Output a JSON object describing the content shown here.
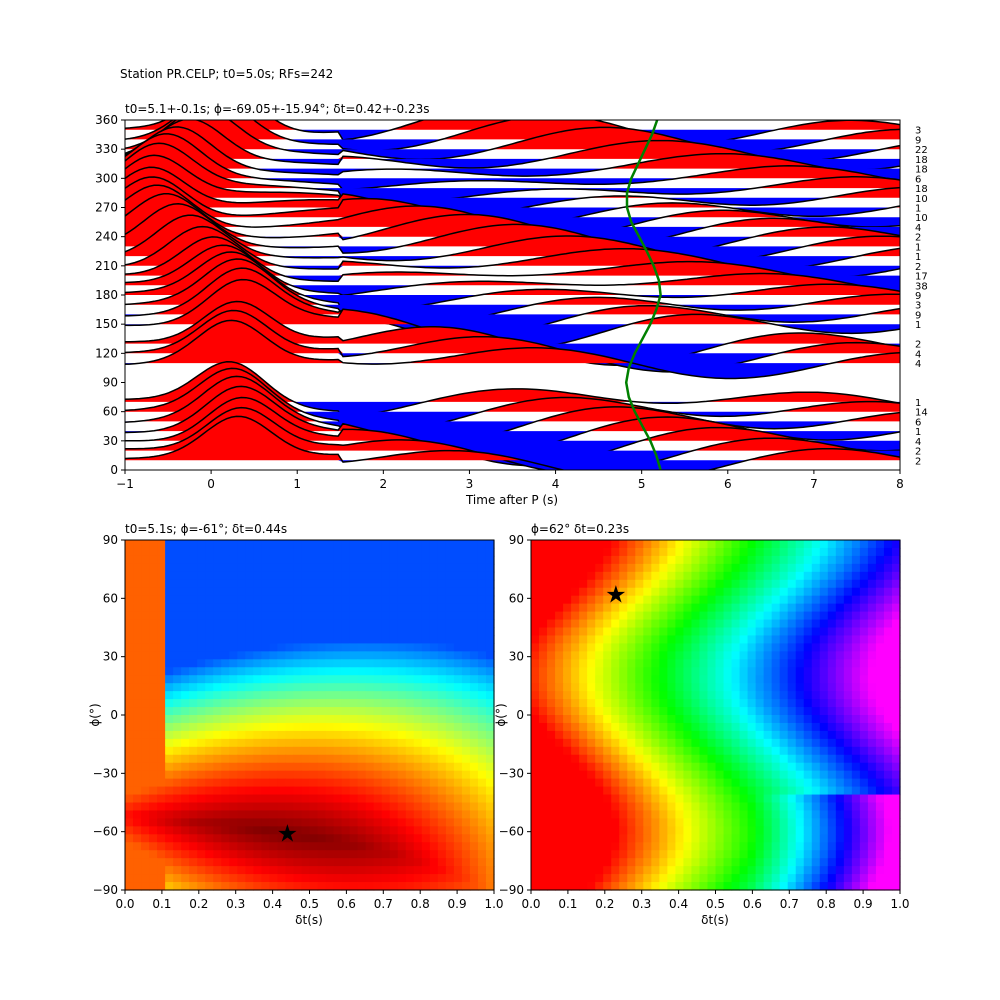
{
  "figure": {
    "suptitle": "Station PR.CELP; t0=5.0s; RFs=242"
  },
  "chart_data": [
    {
      "type": "line",
      "id": "rf-stack",
      "title": "t0=5.1+-0.1s; ϕ=-69.05+-15.94°; δt=0.42+-0.23s",
      "xlabel": "Time after P (s)",
      "ylabel": "",
      "xlim": [
        -1,
        8
      ],
      "ylim": [
        0,
        360
      ],
      "xticks": [
        -1,
        0,
        1,
        2,
        3,
        4,
        5,
        6,
        7,
        8
      ],
      "yticks": [
        0,
        30,
        60,
        90,
        120,
        150,
        180,
        210,
        240,
        270,
        300,
        330,
        360
      ],
      "fill_positive_color": "#ff0000",
      "fill_negative_color": "#0000ff",
      "trace_color": "#000000",
      "t0_curve_color": "#008000",
      "t0_curve": {
        "baz": [
          0,
          15,
          30,
          45,
          60,
          75,
          90,
          105,
          120,
          135,
          150,
          165,
          180,
          195,
          210,
          225,
          240,
          255,
          270,
          285,
          300,
          315,
          330,
          345,
          360
        ],
        "t": [
          5.22,
          5.17,
          5.1,
          5.01,
          4.92,
          4.85,
          4.82,
          4.85,
          4.92,
          5.01,
          5.1,
          5.17,
          5.22,
          5.2,
          5.14,
          5.06,
          4.97,
          4.88,
          4.83,
          4.83,
          4.88,
          4.96,
          5.04,
          5.12,
          5.18
        ]
      },
      "baz_bins": [
        {
          "baz": 10,
          "count": "2"
        },
        {
          "baz": 20,
          "count": "2"
        },
        {
          "baz": 30,
          "count": "4"
        },
        {
          "baz": 40,
          "count": "1"
        },
        {
          "baz": 50,
          "count": "6"
        },
        {
          "baz": 60,
          "count": "14"
        },
        {
          "baz": 70,
          "count": "1"
        },
        {
          "baz": 110,
          "count": "4"
        },
        {
          "baz": 120,
          "count": "4"
        },
        {
          "baz": 130,
          "count": "2"
        },
        {
          "baz": 150,
          "count": "1"
        },
        {
          "baz": 160,
          "count": "9"
        },
        {
          "baz": 170,
          "count": "3"
        },
        {
          "baz": 180,
          "count": "9"
        },
        {
          "baz": 190,
          "count": "38"
        },
        {
          "baz": 200,
          "count": "17"
        },
        {
          "baz": 210,
          "count": "2"
        },
        {
          "baz": 220,
          "count": "1"
        },
        {
          "baz": 230,
          "count": "1"
        },
        {
          "baz": 240,
          "count": "2"
        },
        {
          "baz": 250,
          "count": "4"
        },
        {
          "baz": 260,
          "count": "10"
        },
        {
          "baz": 270,
          "count": "1"
        },
        {
          "baz": 280,
          "count": "10"
        },
        {
          "baz": 290,
          "count": "18"
        },
        {
          "baz": 300,
          "count": "6"
        },
        {
          "baz": 310,
          "count": "18"
        },
        {
          "baz": 320,
          "count": "18"
        },
        {
          "baz": 330,
          "count": "22"
        },
        {
          "baz": 340,
          "count": "9"
        },
        {
          "baz": 350,
          "count": "3"
        }
      ]
    },
    {
      "type": "heatmap",
      "id": "grid-left",
      "title": "t0=5.1s; ϕ=-61°; δt=0.44s",
      "xlabel": "δt(s)",
      "ylabel": "ϕ(°)",
      "xlim": [
        0,
        1
      ],
      "ylim": [
        -90,
        90
      ],
      "xticks": [
        0.0,
        0.1,
        0.2,
        0.3,
        0.4,
        0.5,
        0.6,
        0.7,
        0.8,
        0.9,
        1.0
      ],
      "yticks": [
        -90,
        -60,
        -30,
        0,
        30,
        60,
        90
      ],
      "colormap": "jet",
      "best": {
        "dt": 0.44,
        "phi": -61
      }
    },
    {
      "type": "heatmap",
      "id": "grid-right",
      "title": "ϕ=62° δt=0.23s",
      "xlabel": "δt(s)",
      "ylabel": "ϕ(°)",
      "xlim": [
        0,
        1
      ],
      "ylim": [
        -90,
        90
      ],
      "xticks": [
        0.0,
        0.1,
        0.2,
        0.3,
        0.4,
        0.5,
        0.6,
        0.7,
        0.8,
        0.9,
        1.0
      ],
      "yticks": [
        -90,
        -60,
        -30,
        0,
        30,
        60,
        90
      ],
      "colormap": "gist_rainbow",
      "best": {
        "dt": 0.23,
        "phi": 62
      }
    }
  ]
}
